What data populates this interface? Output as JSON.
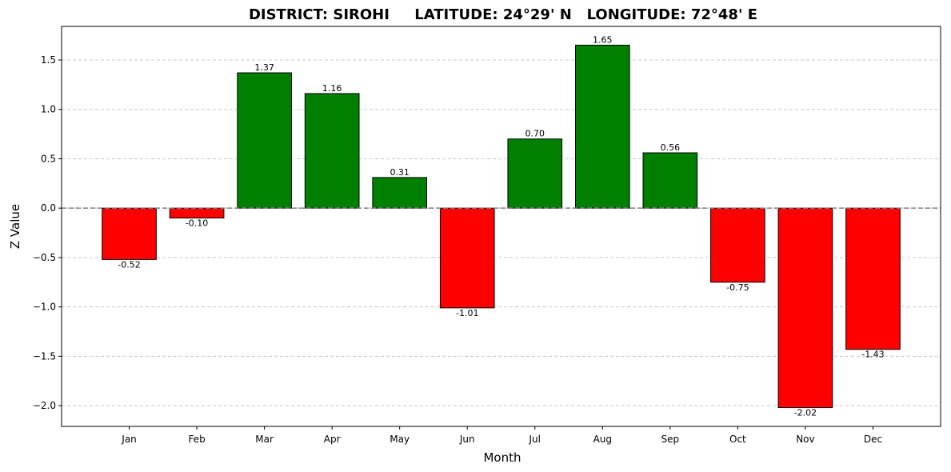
{
  "chart_data": {
    "type": "bar",
    "title": "DISTRICT: SIROHI     LATITUDE: 24°29' N   LONGITUDE: 72°48' E",
    "xlabel": "Month",
    "ylabel": "Z Value",
    "categories": [
      "Jan",
      "Feb",
      "Mar",
      "Apr",
      "May",
      "Jun",
      "Jul",
      "Aug",
      "Sep",
      "Oct",
      "Nov",
      "Dec"
    ],
    "values": [
      -0.52,
      -0.1,
      1.37,
      1.16,
      0.31,
      -1.01,
      0.7,
      1.65,
      0.56,
      -0.75,
      -2.02,
      -1.43
    ],
    "value_labels": [
      "-0.52",
      "-0.10",
      "1.37",
      "1.16",
      "0.31",
      "-1.01",
      "0.70",
      "1.65",
      "0.56",
      "-0.75",
      "-2.02",
      "-1.43"
    ],
    "yticks": [
      -2.0,
      -1.5,
      -1.0,
      -0.5,
      0.0,
      0.5,
      1.0,
      1.5
    ],
    "ytick_labels": [
      "−2.0",
      "−1.5",
      "−1.0",
      "−0.5",
      "0.0",
      "0.5",
      "1.0",
      "1.5"
    ],
    "ylim": [
      -2.21,
      1.84
    ],
    "grid": "y-dashed",
    "zero_line": "dashed",
    "colors": {
      "positive": "#008000",
      "negative": "#ff0000",
      "edge": "#000000",
      "grid": "#c8c8c8",
      "zero_line": "#808080"
    }
  }
}
